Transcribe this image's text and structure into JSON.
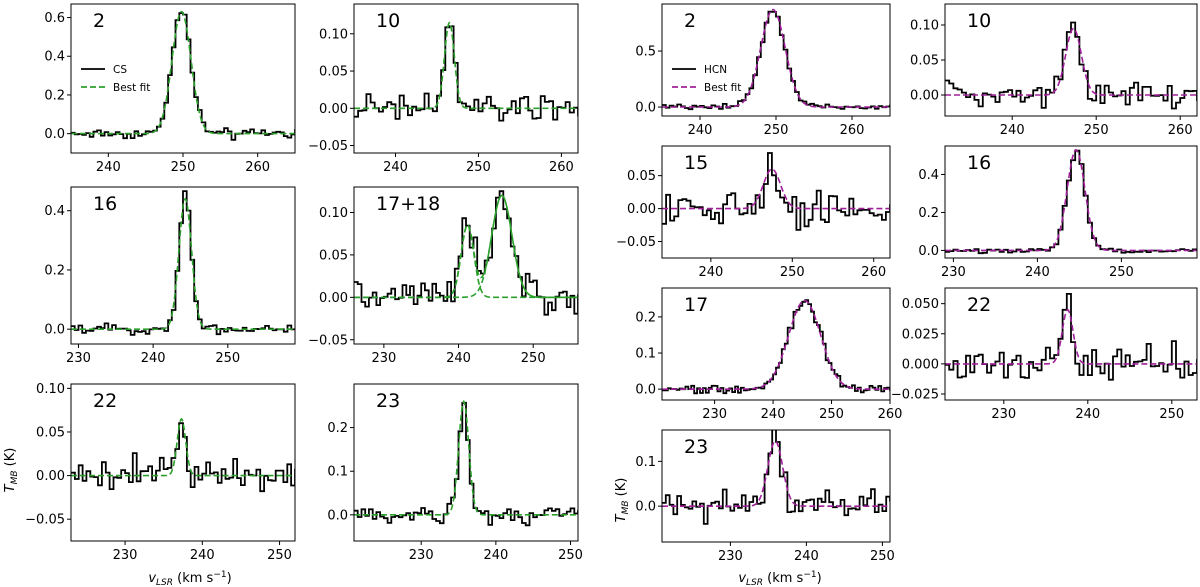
{
  "figure": {
    "ylabel": "T_MB (K)",
    "xlabel": "v_LSR (km s^-1)",
    "colors": {
      "data": "#000000",
      "fit_cs": "#2ca02c",
      "fit_hcn": "#a0209a"
    }
  },
  "chart_data": [
    {
      "type": "line",
      "group": "CS",
      "label": "2",
      "series": [
        {
          "name": "CS"
        },
        {
          "name": "Best fit"
        }
      ],
      "xlim": [
        235,
        265
      ],
      "ylim": [
        -0.1,
        0.67
      ],
      "xticks": [
        240,
        250,
        260
      ],
      "yticks": [
        0.0,
        0.2,
        0.4,
        0.6
      ],
      "ytick_labels": [
        "0.0",
        "0.2",
        "0.4",
        "0.6"
      ],
      "peak": 0.63,
      "center": 249.8,
      "fwhm": 3.0,
      "noise": 0.02
    },
    {
      "type": "line",
      "group": "CS",
      "label": "10",
      "xlim": [
        235,
        262
      ],
      "ylim": [
        -0.06,
        0.14
      ],
      "xticks": [
        240,
        250,
        260
      ],
      "yticks": [
        -0.05,
        0.0,
        0.05,
        0.1
      ],
      "ytick_labels": [
        "−0.05",
        "0.00",
        "0.05",
        "0.10"
      ],
      "peak": 0.115,
      "center": 246.5,
      "fwhm": 1.4,
      "noise": 0.015
    },
    {
      "type": "line",
      "group": "CS",
      "label": "16",
      "xlim": [
        229,
        259
      ],
      "ylim": [
        -0.05,
        0.48
      ],
      "xticks": [
        230,
        240,
        250
      ],
      "yticks": [
        0.0,
        0.2,
        0.4
      ],
      "ytick_labels": [
        "0.0",
        "0.2",
        "0.4"
      ],
      "peak": 0.44,
      "center": 244.3,
      "fwhm": 2.0,
      "noise": 0.012
    },
    {
      "type": "line",
      "group": "CS",
      "label": "17+18",
      "xlim": [
        226,
        256
      ],
      "ylim": [
        -0.055,
        0.13
      ],
      "xticks": [
        230,
        240,
        250
      ],
      "yticks": [
        -0.05,
        0.0,
        0.05,
        0.1
      ],
      "ytick_labels": [
        "−0.05",
        "0.00",
        "0.05",
        "0.10"
      ],
      "peak": 0.085,
      "center": 241.2,
      "fwhm": 2.0,
      "peak2": 0.12,
      "center2": 245.8,
      "fwhm2": 3.2,
      "noise": 0.015
    },
    {
      "type": "line",
      "group": "CS",
      "label": "22",
      "xlim": [
        223,
        252
      ],
      "ylim": [
        -0.075,
        0.105
      ],
      "xticks": [
        230,
        240,
        250
      ],
      "yticks": [
        -0.05,
        0.0,
        0.05,
        0.1
      ],
      "ytick_labels": [
        "−0.05",
        "0.00",
        "0.05",
        "0.10"
      ],
      "peak": 0.065,
      "center": 237.3,
      "fwhm": 1.3,
      "noise": 0.014
    },
    {
      "type": "line",
      "group": "CS",
      "label": "23",
      "xlim": [
        221,
        251
      ],
      "ylim": [
        -0.06,
        0.3
      ],
      "xticks": [
        230,
        240,
        250
      ],
      "yticks": [
        0.0,
        0.1,
        0.2
      ],
      "ytick_labels": [
        "0.0",
        "0.1",
        "0.2"
      ],
      "peak": 0.26,
      "center": 235.7,
      "fwhm": 1.6,
      "noise": 0.017
    },
    {
      "type": "line",
      "group": "HCN",
      "label": "2",
      "series": [
        {
          "name": "HCN"
        },
        {
          "name": "Best fit"
        }
      ],
      "xlim": [
        235,
        265
      ],
      "ylim": [
        -0.08,
        0.92
      ],
      "xticks": [
        240,
        250,
        260
      ],
      "yticks": [
        0.0,
        0.5
      ],
      "ytick_labels": [
        "0.0",
        "0.5"
      ],
      "peak": 0.87,
      "center": 249.6,
      "fwhm": 3.8,
      "noise": 0.02
    },
    {
      "type": "line",
      "group": "HCN",
      "label": "10",
      "xlim": [
        232,
        262
      ],
      "ylim": [
        -0.03,
        0.13
      ],
      "xticks": [
        240,
        250,
        260
      ],
      "yticks": [
        0.0,
        0.05,
        0.1
      ],
      "ytick_labels": [
        "0.00",
        "0.05",
        "0.10"
      ],
      "peak": 0.095,
      "center": 247.3,
      "fwhm": 2.2,
      "noise": 0.017
    },
    {
      "type": "line",
      "group": "HCN",
      "label": "15",
      "xlim": [
        234,
        262
      ],
      "ylim": [
        -0.075,
        0.095
      ],
      "xticks": [
        240,
        250,
        260
      ],
      "yticks": [
        -0.05,
        0.0,
        0.05
      ],
      "ytick_labels": [
        "−0.05",
        "0.00",
        "0.05"
      ],
      "peak": 0.06,
      "center": 247.5,
      "fwhm": 2.5,
      "noise": 0.022
    },
    {
      "type": "line",
      "group": "HCN",
      "label": "16",
      "xlim": [
        229,
        259
      ],
      "ylim": [
        -0.04,
        0.55
      ],
      "xticks": [
        230,
        240,
        250
      ],
      "yticks": [
        0.0,
        0.2,
        0.4
      ],
      "ytick_labels": [
        "0.0",
        "0.2",
        "0.4"
      ],
      "peak": 0.53,
      "center": 244.6,
      "fwhm": 2.5,
      "noise": 0.01
    },
    {
      "type": "line",
      "group": "HCN",
      "label": "17",
      "xlim": [
        221,
        260
      ],
      "ylim": [
        -0.03,
        0.28
      ],
      "xticks": [
        230,
        240,
        250,
        260
      ],
      "yticks": [
        0.0,
        0.1,
        0.2
      ],
      "ytick_labels": [
        "0.0",
        "0.1",
        "0.2"
      ],
      "peak": 0.245,
      "center": 245.4,
      "fwhm": 6.5,
      "noise": 0.008
    },
    {
      "type": "line",
      "group": "HCN",
      "label": "22",
      "xlim": [
        223,
        253
      ],
      "ylim": [
        -0.03,
        0.063
      ],
      "xticks": [
        230,
        240,
        250
      ],
      "yticks": [
        -0.025,
        0.0,
        0.025,
        0.05
      ],
      "ytick_labels": [
        "−0.025",
        "0.000",
        "0.025",
        "0.050"
      ],
      "peak": 0.045,
      "center": 237.6,
      "fwhm": 1.5,
      "noise": 0.012
    },
    {
      "type": "line",
      "group": "HCN",
      "label": "23",
      "xlim": [
        221,
        251
      ],
      "ylim": [
        -0.08,
        0.17
      ],
      "xticks": [
        230,
        240,
        250
      ],
      "yticks": [
        0.0,
        0.1
      ],
      "ytick_labels": [
        "0.0",
        "0.1"
      ],
      "peak": 0.145,
      "center": 235.9,
      "fwhm": 2.3,
      "noise": 0.028
    }
  ]
}
